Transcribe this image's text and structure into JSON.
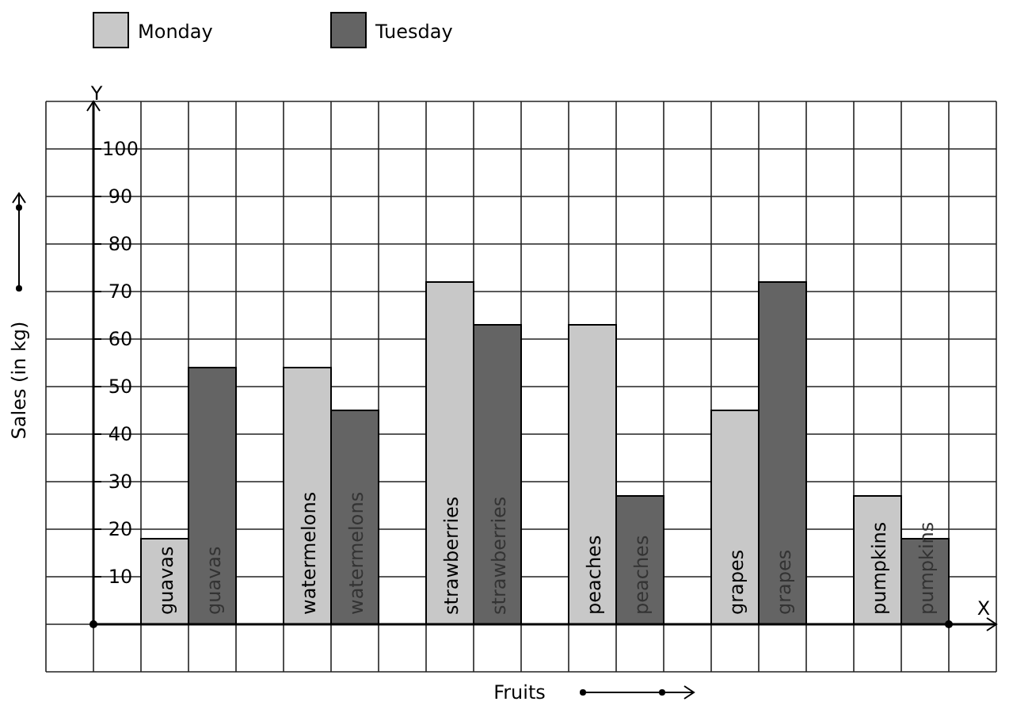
{
  "chart_data": {
    "type": "bar",
    "xlabel": "Fruits",
    "ylabel": "Sales (in kg)",
    "categories": [
      "guavas",
      "watermelons",
      "strawberries",
      "peaches",
      "grapes",
      "pumpkins"
    ],
    "series": [
      {
        "name": "Monday",
        "color": "#c8c8c8",
        "values": [
          18,
          54,
          72,
          63,
          45,
          27
        ]
      },
      {
        "name": "Tuesday",
        "color": "#646464",
        "values": [
          54,
          45,
          63,
          27,
          72,
          18
        ]
      }
    ],
    "ylim": [
      0,
      110
    ],
    "yticks": [
      10,
      20,
      30,
      40,
      50,
      60,
      70,
      80,
      90,
      100
    ],
    "grid": true,
    "legend": "top left",
    "annotations": [
      "Y",
      "X"
    ]
  }
}
